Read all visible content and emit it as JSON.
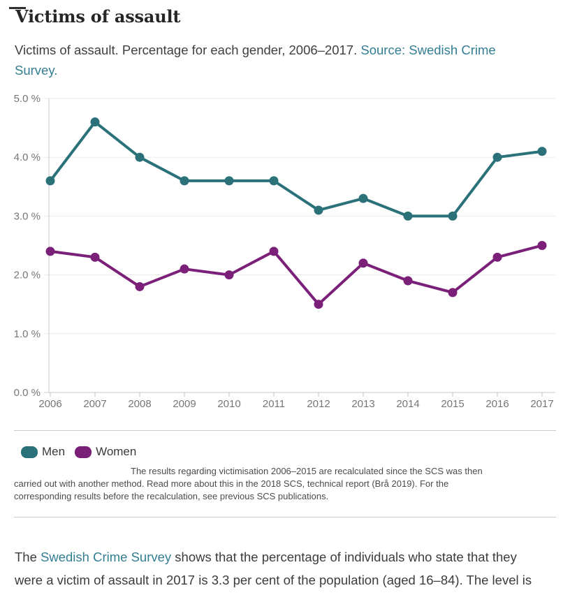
{
  "page": {
    "title": "Victims of assault",
    "subtitle": {
      "prefix": "Victims of assault. Percentage for each gender, 2006–2017. ",
      "link_line1": "Source: Swedish Crime",
      "link_line2": "Survey."
    },
    "footnote": {
      "lines": [
        "The results regarding victimisation 2006–2015 are recalculated since the SCS was then",
        "carried out with another method. Read more about this in the 2018 SCS, technical report (Brå 2019). For the",
        "corresponding results before the recalculation, see previous SCS publications."
      ]
    },
    "paragraph": {
      "prefix": "The ",
      "link": "Swedish Crime Survey",
      "suffix_line1": " shows that the percentage of individuals who state that they",
      "suffix_line2": "were a victim of assault in 2017 is 3.3 per cent of the population (aged 16–84). The level is"
    }
  },
  "legend": [
    {
      "label": "Men",
      "color": "#2b7179"
    },
    {
      "label": "Women",
      "color": "#7b2078"
    }
  ],
  "colors": {
    "men": "#2b7179",
    "women": "#7b2078",
    "link": "#337e92",
    "axis": "#c9c9c9",
    "gridline": "#eaeaea",
    "axis_label": "#767676"
  },
  "chart_data": {
    "type": "line",
    "title": "Victims of assault. Percentage for each gender, 2006–2017.",
    "x": [
      2006,
      2007,
      2008,
      2009,
      2010,
      2011,
      2012,
      2013,
      2014,
      2015,
      2016,
      2017
    ],
    "series": [
      {
        "name": "Men",
        "color": "#2b7179",
        "values": [
          3.6,
          4.6,
          4.0,
          3.6,
          3.6,
          3.6,
          3.1,
          3.3,
          3.0,
          3.0,
          4.0,
          4.1
        ]
      },
      {
        "name": "Women",
        "color": "#7b2078",
        "values": [
          2.4,
          2.3,
          1.8,
          2.1,
          2.0,
          2.4,
          1.5,
          2.2,
          1.9,
          1.7,
          2.3,
          2.5
        ]
      }
    ],
    "xlabel": "",
    "ylabel": "",
    "ylim": [
      0,
      5
    ],
    "yticks": [
      0,
      1,
      2,
      3,
      4,
      5
    ],
    "ytick_labels": [
      "0.0 %",
      "1.0 %",
      "2.0 %",
      "3.0 %",
      "4.0 %",
      "5.0 %"
    ],
    "grid": true,
    "legend_position": "bottom"
  }
}
